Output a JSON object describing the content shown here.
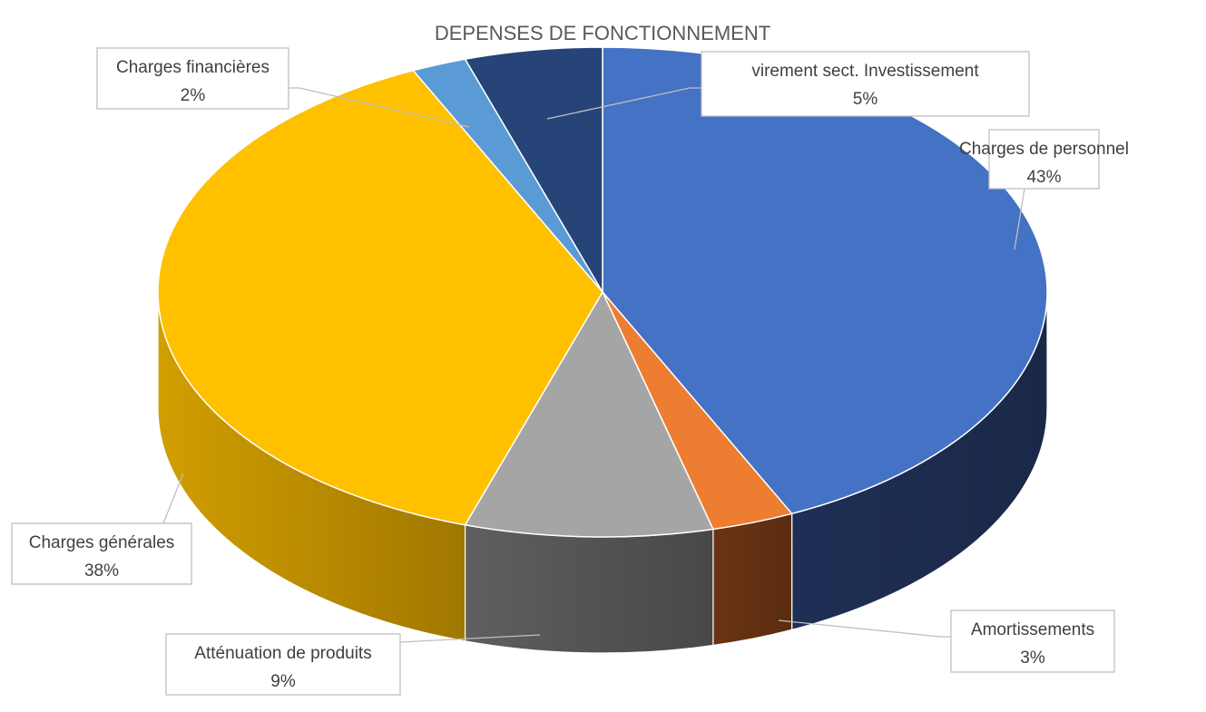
{
  "chart_data": {
    "type": "pie",
    "title": "DEPENSES DE FONCTIONNEMENT",
    "slices": [
      {
        "label": "Charges de personnel",
        "value": 43,
        "value_label": "43%",
        "color": "#4472C4",
        "side_color": "#1F2F55"
      },
      {
        "label": "Amortissements",
        "value": 3,
        "value_label": "3%",
        "color": "#ED7D31",
        "side_color": "#6B3414"
      },
      {
        "label": "Atténuation de produits",
        "value": 9,
        "value_label": "9%",
        "color": "#A5A5A5",
        "side_color": "#5A5A5A"
      },
      {
        "label": "Charges générales",
        "value": 38,
        "value_label": "38%",
        "color": "#FFC000",
        "side_color": "#C89600"
      },
      {
        "label": "Charges financières",
        "value": 2,
        "value_label": "2%",
        "color": "#5B9BD5",
        "side_color": "#2E5F8C"
      },
      {
        "label": "virement sect. Investissement",
        "value": 5,
        "value_label": "5%",
        "color": "#264478",
        "side_color": "#14274A"
      }
    ],
    "legend": "none",
    "style": "3d"
  }
}
